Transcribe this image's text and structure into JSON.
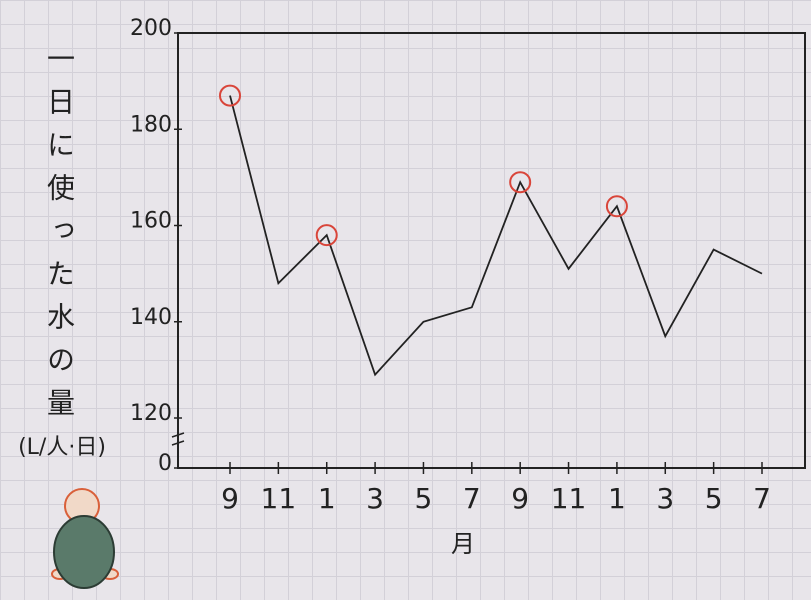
{
  "chart_data": {
    "type": "line",
    "ylabel": "一日に使った水の量",
    "yunit": "(L/人·日)",
    "xlabel": "月",
    "categories": [
      "9",
      "11",
      "1",
      "3",
      "5",
      "7",
      "9",
      "11",
      "1",
      "3",
      "5",
      "7"
    ],
    "series": [
      {
        "color": "#222222",
        "values": [
          187,
          148,
          158,
          129,
          140,
          143,
          169,
          151,
          164,
          137,
          155,
          150
        ]
      }
    ],
    "highlighted": [
      0,
      2,
      6,
      8
    ],
    "highlight_color": "#d9453a",
    "ylim": [
      0,
      200
    ],
    "yticks": [
      0,
      120,
      140,
      160,
      180,
      200
    ],
    "axis_break": true
  }
}
